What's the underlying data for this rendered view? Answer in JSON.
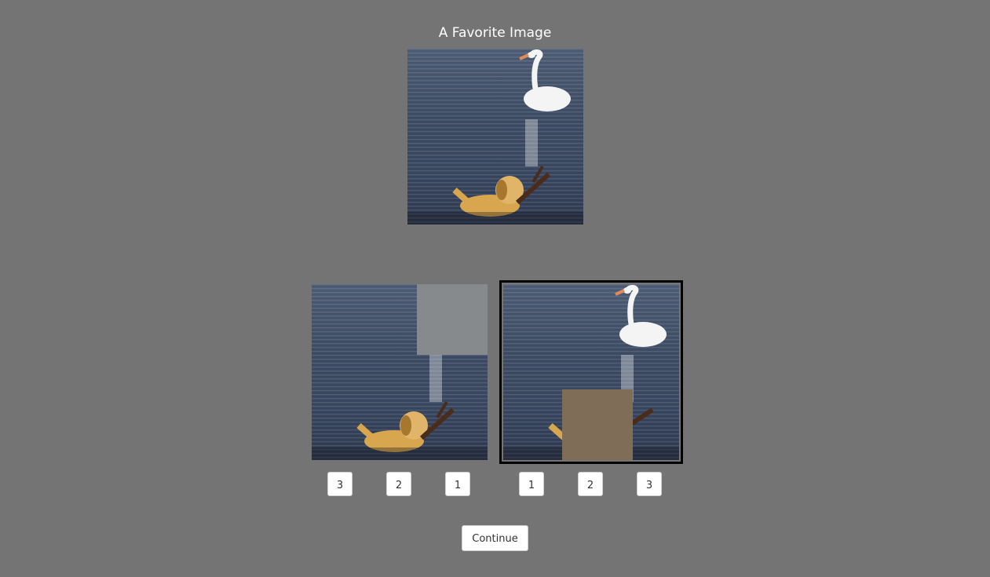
{
  "page": {
    "title": "A Favorite Image"
  },
  "target_image": {
    "name": "target-image",
    "subjects": [
      "swan",
      "dog"
    ]
  },
  "choices": [
    {
      "name": "choice-left",
      "occluder_color": "#878a8d",
      "rank_buttons": [
        "3",
        "2",
        "1"
      ],
      "selected": false
    },
    {
      "name": "choice-right",
      "occluder_color": "#7f6d58",
      "rank_buttons": [
        "1",
        "2",
        "3"
      ],
      "selected": true
    }
  ],
  "actions": {
    "continue_label": "Continue"
  },
  "colors": {
    "background": "#747474",
    "selection_border": "#000000",
    "button_bg": "#ffffff"
  }
}
